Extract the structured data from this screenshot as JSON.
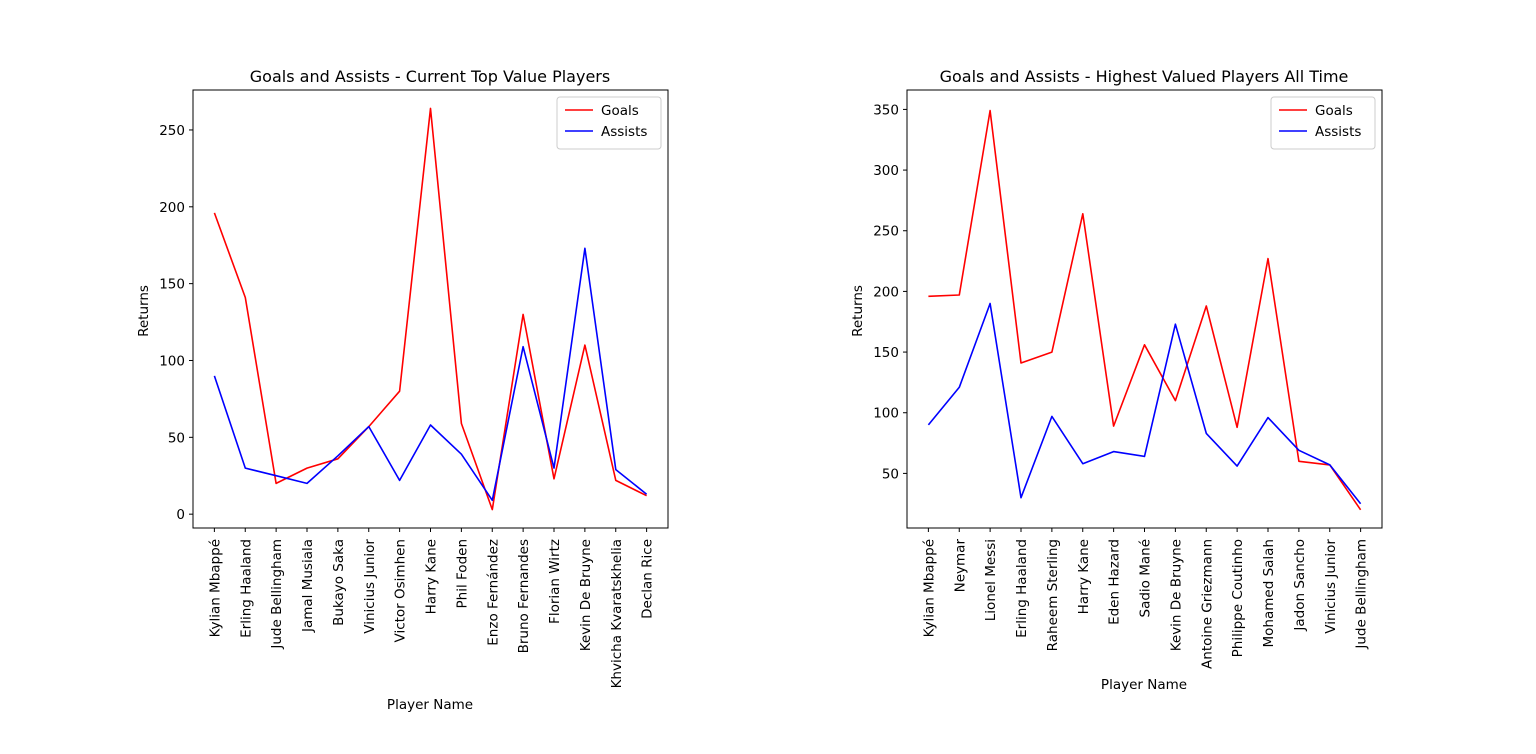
{
  "chart_data": [
    {
      "type": "line",
      "title": "Goals and Assists - Current Top Value Players",
      "xlabel": "Player Name",
      "ylabel": "Returns",
      "categories": [
        "Kylian Mbappé",
        "Erling Haaland",
        "Jude Bellingham",
        "Jamal Musiala",
        "Bukayo Saka",
        "Vinicius Junior",
        "Victor Osimhen",
        "Harry Kane",
        "Phil Foden",
        "Enzo Fernández",
        "Bruno Fernandes",
        "Florian Wirtz",
        "Kevin De Bruyne",
        "Khvicha Kvaratskhelia",
        "Declan Rice"
      ],
      "series": [
        {
          "name": "Goals",
          "color": "#ff0000",
          "values": [
            196,
            141,
            20,
            30,
            36,
            57,
            80,
            264,
            59,
            3,
            130,
            23,
            110,
            22,
            12
          ]
        },
        {
          "name": "Assists",
          "color": "#0000ff",
          "values": [
            90,
            30,
            25,
            20,
            38,
            57,
            22,
            58,
            39,
            9,
            109,
            30,
            173,
            29,
            13
          ]
        }
      ],
      "ylim": [
        -9,
        276
      ],
      "yticks": [
        0,
        50,
        100,
        150,
        200,
        250
      ],
      "legend": "top-right",
      "grid": false
    },
    {
      "type": "line",
      "title": "Goals and Assists - Highest Valued Players All Time",
      "xlabel": "Player Name",
      "ylabel": "Returns",
      "categories": [
        "Kylian Mbappé",
        "Neymar",
        "Lionel Messi",
        "Erling Haaland",
        "Raheem Sterling",
        "Harry Kane",
        "Eden Hazard",
        "Sadio Mané",
        "Kevin De Bruyne",
        "Antoine Griezmann",
        "Philippe Coutinho",
        "Mohamed Salah",
        "Jadon Sancho",
        "Vinicius Junior",
        "Jude Bellingham"
      ],
      "series": [
        {
          "name": "Goals",
          "color": "#ff0000",
          "values": [
            196,
            197,
            349,
            141,
            150,
            264,
            89,
            156,
            110,
            188,
            88,
            227,
            60,
            57,
            20
          ]
        },
        {
          "name": "Assists",
          "color": "#0000ff",
          "values": [
            90,
            121,
            190,
            30,
            97,
            58,
            68,
            64,
            173,
            83,
            56,
            96,
            69,
            57,
            25
          ]
        }
      ],
      "ylim": [
        5,
        366
      ],
      "yticks": [
        50,
        100,
        150,
        200,
        250,
        300,
        350
      ],
      "legend": "top-right",
      "grid": false
    }
  ]
}
